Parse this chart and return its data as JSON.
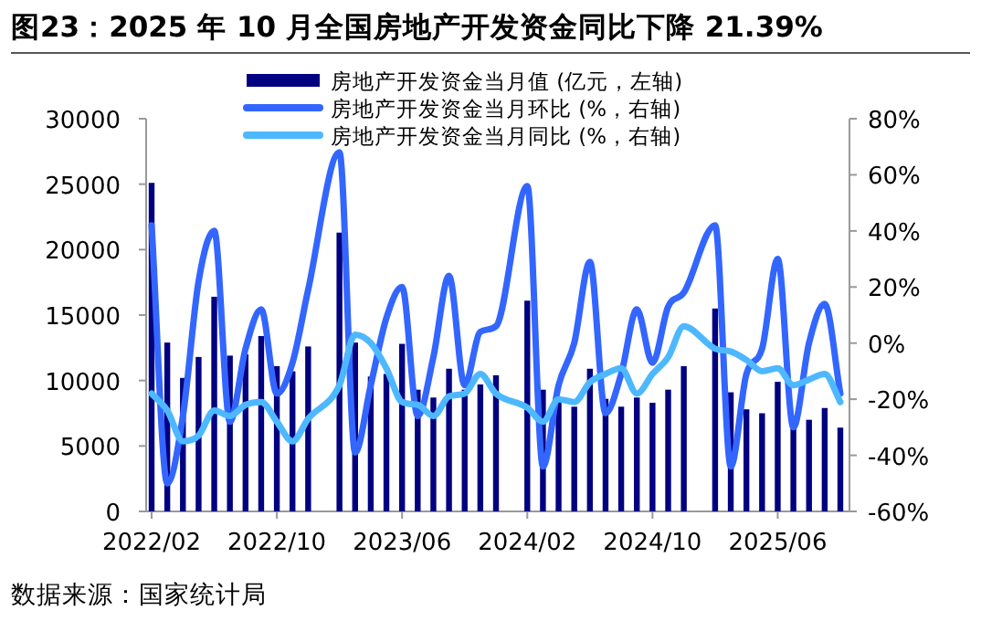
{
  "chart_data": {
    "type": "bar",
    "title": "图23：2025 年 10 月全国房地产开发资金同比下降 21.39%",
    "categories": [
      "2022/02",
      null,
      null,
      null,
      null,
      null,
      null,
      null,
      "2022/10",
      null,
      null,
      null,
      null,
      null,
      null,
      null,
      "2023/06",
      null,
      null,
      null,
      null,
      null,
      null,
      null,
      "2024/02",
      null,
      null,
      null,
      null,
      null,
      null,
      null,
      "2024/10",
      null,
      null,
      null,
      null,
      null,
      null,
      null,
      "2025/06",
      null,
      null,
      null,
      null
    ],
    "series": [
      {
        "name": "房地产开发资金当月值 (亿元，左轴)",
        "color": "#000080",
        "values": [
          25100,
          12900,
          10200,
          11800,
          16400,
          11900,
          12000,
          13400,
          11100,
          10700,
          12600,
          null,
          21300,
          12900,
          10300,
          10500,
          12800,
          9300,
          8700,
          10900,
          9300,
          9700,
          10400,
          null,
          16100,
          9300,
          8600,
          8000,
          10900,
          8600,
          8000,
          8700,
          8300,
          9300,
          11100,
          null,
          15500,
          9100,
          7800,
          7500,
          9900,
          7300,
          7000,
          7900,
          6400
        ]
      },
      {
        "name": "房地产开发资金当月环比 (%，右轴)",
        "type": "line",
        "axis": "y2",
        "color": "#3366ff",
        "values": [
          42,
          -50,
          -26,
          22,
          40,
          -28,
          -2,
          12,
          -18,
          -7,
          19,
          null,
          68,
          -39,
          -15,
          9,
          20,
          -26,
          -5,
          24,
          -15,
          4,
          6,
          null,
          56,
          -44,
          -15,
          0,
          29,
          -25,
          -11,
          12,
          -7,
          13,
          18,
          null,
          42,
          -44,
          -11,
          -2,
          30,
          -30,
          0,
          14,
          -18
        ]
      },
      {
        "name": "房地产开发资金当月同比 (%，右轴)",
        "type": "line",
        "axis": "y2",
        "color": "#4db8ff",
        "values": [
          -18,
          -24,
          -35,
          -33,
          -24,
          -26,
          -22,
          -21,
          -28,
          -35,
          -27,
          null,
          -15,
          3,
          0,
          -9,
          -21,
          -22,
          -26,
          -19,
          -18,
          -11,
          -18,
          null,
          -23,
          -28,
          -20,
          -21,
          -14,
          -11,
          -9,
          -18,
          -11,
          -5,
          6,
          null,
          -2,
          -3,
          -6,
          -10,
          -9,
          -15,
          -13,
          -11,
          -21
        ]
      }
    ],
    "ylim": [
      0,
      30000
    ],
    "yticks": [
      0,
      5000,
      10000,
      15000,
      20000,
      25000,
      30000
    ],
    "y2lim": [
      -60,
      80
    ],
    "y2ticks": [
      {
        "value": -60,
        "label": "-60%"
      },
      {
        "value": -40,
        "label": "-40%"
      },
      {
        "value": -20,
        "label": "-20%"
      },
      {
        "value": 0,
        "label": "0%"
      },
      {
        "value": 20,
        "label": "20%"
      },
      {
        "value": 40,
        "label": "40%"
      },
      {
        "value": 60,
        "label": "60%"
      },
      {
        "value": 80,
        "label": "80%"
      }
    ],
    "legend": "top",
    "annotations": [
      "数据来源：国家统计局"
    ]
  }
}
